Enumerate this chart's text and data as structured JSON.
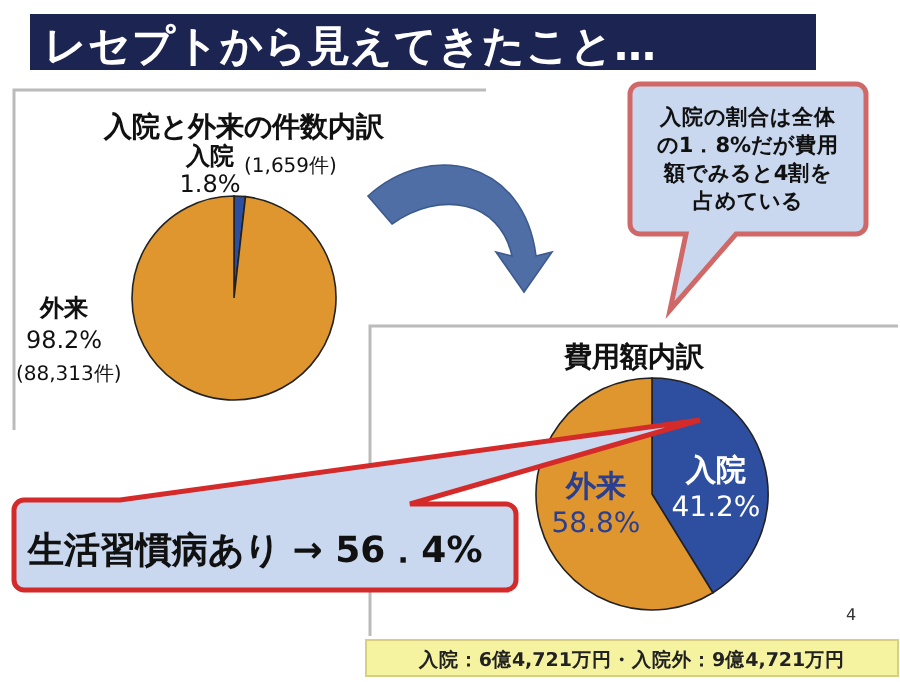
{
  "chart_data": [
    {
      "type": "pie",
      "title": "入院と外来の件数内訳",
      "categories": [
        "入院",
        "外来"
      ],
      "values": [
        1.8,
        98.2
      ],
      "colors": [
        "#2e4ea0",
        "#e0962e"
      ],
      "value_labels": [
        "1.8%",
        "98.2%"
      ],
      "annotations": [
        "レセプトから見えてきたこと…",
        "(1,659件)",
        "(88,313件)",
        "入院の割合は全体の1．8%だが費用額でみると4割を占めている"
      ]
    },
    {
      "type": "pie",
      "title": "費用額内訳",
      "categories": [
        "入院",
        "外来"
      ],
      "values": [
        41.2,
        58.8
      ],
      "colors": [
        "#2e4ea0",
        "#e0962e"
      ],
      "value_labels": [
        "41.2%",
        "58.8%"
      ],
      "annotations": [
        "生活習慣病あり → 56．4%",
        "入院：6億4,721万円・入院外：9億4,721万円",
        "4"
      ]
    }
  ]
}
